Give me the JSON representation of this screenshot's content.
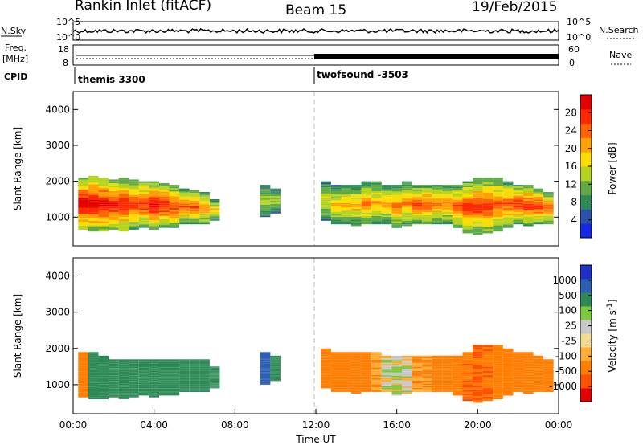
{
  "header": {
    "station": "Rankin Inlet (fitACF)",
    "beam": "Beam 15",
    "date": "19/Feb/2015"
  },
  "side_labels": {
    "nsky": "N.Sky",
    "freq_top": "Freq.",
    "freq_unit": "[MHz]",
    "cpid": "CPID",
    "nsearch": "N.Search",
    "nave": "Nave"
  },
  "summary_ticks": {
    "n_left_top": "10^5",
    "n_left_bottom": "10^0",
    "n_right_top": "10^5",
    "n_right_bottom": "10^0",
    "freq_left_top": "18",
    "freq_left_bottom": "8",
    "nave_right_top": "60",
    "nave_right_bottom": "0"
  },
  "cpid_labels": {
    "first": "themis 3300",
    "second": "twofsound -3503"
  },
  "colors": {
    "power": [
      "#1428e6",
      "#2d51a8",
      "#2e8b57",
      "#5faa46",
      "#b4d21e",
      "#fadc00",
      "#ffa000",
      "#ff6400",
      "#ff2800",
      "#e60000"
    ],
    "velocity": [
      "#e60000",
      "#ff5000",
      "#ff7d00",
      "#ffaa32",
      "#f0dc8c",
      "#c8c8c8",
      "#7cc83c",
      "#2e8b57",
      "#2d60b4",
      "#1e32c8"
    ],
    "ground_scatter": "#aaaaaa"
  },
  "chart_data": [
    {
      "type": "heatmap",
      "title": "",
      "ylabel": "Slant Range [km]",
      "xlabel": "",
      "ylim": [
        200,
        4500
      ],
      "yticks": [
        "1000",
        "2000",
        "3000",
        "4000"
      ],
      "colorbar": {
        "label": "Power [dB]",
        "ticks": [
          "4",
          "8",
          "12",
          "16",
          "20",
          "24",
          "28"
        ],
        "range": [
          0,
          30
        ]
      },
      "time_hours": [
        0.5,
        1.0,
        1.5,
        2.0,
        2.5,
        3.0,
        3.5,
        4.0,
        4.5,
        5.0,
        5.5,
        6.0,
        6.5,
        7.0,
        9.5,
        10.0,
        12.5,
        13.0,
        13.5,
        14.0,
        14.5,
        15.0,
        15.5,
        16.0,
        16.5,
        17.0,
        17.5,
        18.0,
        18.5,
        19.0,
        19.5,
        20.0,
        20.5,
        21.0,
        21.5,
        22.0,
        22.5,
        23.0,
        23.5
      ],
      "band_low_km": [
        650,
        600,
        600,
        650,
        600,
        650,
        700,
        650,
        700,
        700,
        800,
        800,
        800,
        900,
        1000,
        1100,
        900,
        800,
        800,
        750,
        800,
        800,
        800,
        700,
        750,
        800,
        800,
        800,
        800,
        700,
        550,
        500,
        550,
        600,
        700,
        800,
        750,
        800,
        800
      ],
      "band_high_km": [
        2100,
        2150,
        2100,
        2050,
        2100,
        2050,
        2000,
        2000,
        1950,
        1900,
        1800,
        1750,
        1700,
        1500,
        1900,
        1800,
        2000,
        1900,
        1900,
        1900,
        2000,
        2000,
        1900,
        1900,
        2000,
        1900,
        1900,
        1900,
        1900,
        1900,
        2000,
        2100,
        2100,
        2100,
        2000,
        1900,
        1900,
        1800,
        1700
      ],
      "peak_power_db": [
        30,
        30,
        29,
        28,
        28,
        26,
        26,
        28,
        27,
        26,
        24,
        24,
        22,
        18,
        14,
        14,
        16,
        18,
        20,
        20,
        22,
        20,
        20,
        22,
        22,
        24,
        24,
        22,
        22,
        24,
        26,
        26,
        26,
        24,
        24,
        26,
        26,
        26,
        24
      ]
    },
    {
      "type": "heatmap",
      "title": "",
      "ylabel": "Slant Range [km]",
      "xlabel": "Time UT",
      "ylim": [
        200,
        4500
      ],
      "yticks": [
        "1000",
        "2000",
        "3000",
        "4000"
      ],
      "xticks": [
        "00:00",
        "04:00",
        "08:00",
        "12:00",
        "16:00",
        "20:00",
        "00:00"
      ],
      "colorbar": {
        "label": "Velocity [m s^-1]",
        "ticks": [
          "-1000",
          "-500",
          "-100",
          "-25",
          "25",
          "100",
          "500",
          "1000"
        ],
        "range": [
          -1200,
          1200
        ]
      },
      "time_hours": [
        0.5,
        1.0,
        1.5,
        2.0,
        2.5,
        3.0,
        3.5,
        4.0,
        4.5,
        5.0,
        5.5,
        6.0,
        6.5,
        7.0,
        9.5,
        10.0,
        12.5,
        13.0,
        13.5,
        14.0,
        14.5,
        15.0,
        15.5,
        16.0,
        16.5,
        17.0,
        17.5,
        18.0,
        18.5,
        19.0,
        19.5,
        20.0,
        20.5,
        21.0,
        21.5,
        22.0,
        22.5,
        23.0,
        23.5
      ],
      "band_low_km": [
        650,
        600,
        600,
        650,
        600,
        650,
        700,
        650,
        700,
        700,
        800,
        800,
        800,
        900,
        1000,
        1100,
        900,
        800,
        800,
        750,
        800,
        800,
        800,
        700,
        750,
        800,
        800,
        800,
        800,
        700,
        550,
        500,
        550,
        600,
        700,
        800,
        750,
        800,
        800
      ],
      "band_high_km": [
        1900,
        1900,
        1800,
        1700,
        1700,
        1700,
        1700,
        1700,
        1700,
        1700,
        1700,
        1700,
        1700,
        1500,
        1900,
        1800,
        2000,
        1900,
        1900,
        1900,
        1900,
        1900,
        1800,
        1800,
        1800,
        1800,
        1800,
        1800,
        1800,
        1800,
        1900,
        2100,
        2100,
        2100,
        2000,
        1900,
        1900,
        1800,
        1700
      ],
      "velocity_ms": [
        -300,
        300,
        250,
        250,
        250,
        250,
        250,
        250,
        250,
        250,
        250,
        250,
        250,
        150,
        800,
        300,
        -300,
        -400,
        -300,
        -200,
        -200,
        -100,
        0,
        0,
        0,
        -100,
        -100,
        -200,
        -300,
        -400,
        -500,
        -500,
        -500,
        -400,
        -400,
        -300,
        -300,
        -200,
        -200
      ]
    }
  ]
}
